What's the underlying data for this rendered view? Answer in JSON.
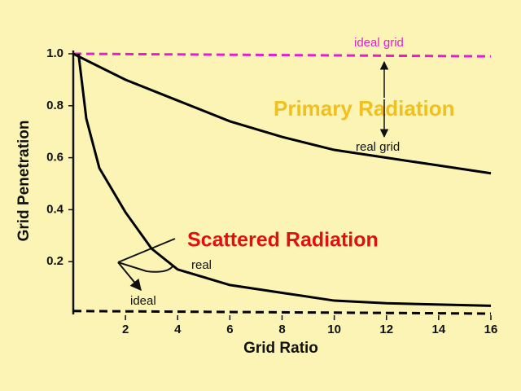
{
  "chart_data": {
    "type": "line",
    "xlabel": "Grid Ratio",
    "ylabel": "Grid Penetration",
    "xlim": [
      0,
      16
    ],
    "ylim": [
      0,
      1
    ],
    "xticks": [
      2,
      4,
      6,
      8,
      10,
      12,
      14,
      16
    ],
    "yticks": [
      0.2,
      0.4,
      0.6,
      {
        "value": 0.8,
        "label": "0.8"
      },
      {
        "value": 1,
        "label": "1.0"
      }
    ],
    "annotations": [
      "Primary Radiation",
      "Scattered Radiation"
    ],
    "series": [
      {
        "name": "ideal grid",
        "color": "#e020d0",
        "dashed": true,
        "x": [
          0,
          16
        ],
        "values": [
          1.0,
          0.99
        ]
      },
      {
        "name": "real grid",
        "color": "#000000",
        "dashed": false,
        "x": [
          0,
          2,
          4,
          6,
          8,
          10,
          12,
          14,
          16
        ],
        "values": [
          1.0,
          0.9,
          0.82,
          0.74,
          0.68,
          0.63,
          0.6,
          0.57,
          0.54
        ]
      },
      {
        "name": "real",
        "color": "#000000",
        "dashed": false,
        "x": [
          0.2,
          0.5,
          1,
          2,
          3,
          4,
          6,
          8,
          10,
          12,
          16
        ],
        "values": [
          1.0,
          0.75,
          0.56,
          0.39,
          0.25,
          0.17,
          0.11,
          0.08,
          0.05,
          0.04,
          0.03
        ]
      },
      {
        "name": "ideal",
        "color": "#000000",
        "dashed": true,
        "x": [
          0,
          16
        ],
        "values": [
          0.01,
          0.0
        ]
      }
    ]
  }
}
